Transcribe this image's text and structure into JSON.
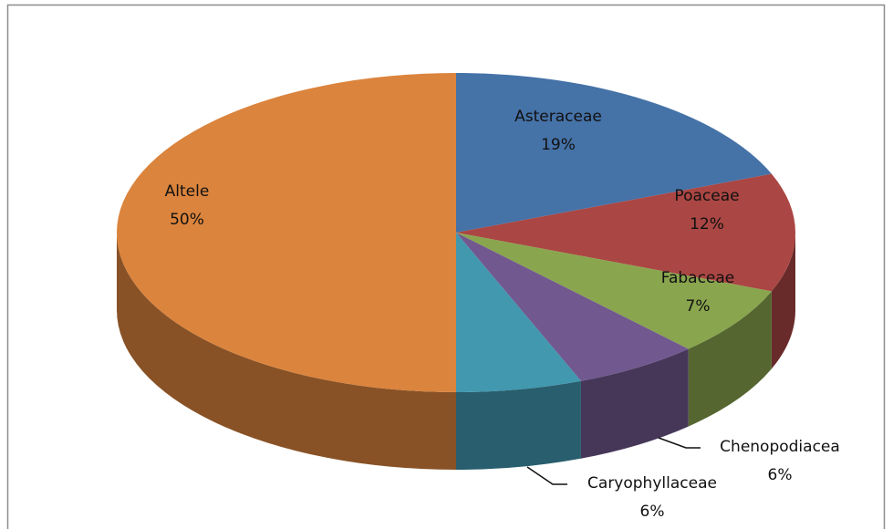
{
  "chart_data": {
    "type": "pie",
    "categories": [
      "Asteraceae",
      "Poaceae",
      "Fabaceae",
      "Chenopodiacea",
      "Caryophyllaceae",
      "Altele"
    ],
    "values": [
      19,
      12,
      7,
      6,
      6,
      50
    ],
    "value_labels": [
      "19%",
      "12%",
      "7%",
      "6%",
      "6%",
      "50%"
    ],
    "colors": [
      "#4572a7",
      "#aa4643",
      "#89a54e",
      "#71588f",
      "#4198af",
      "#db843d"
    ]
  }
}
